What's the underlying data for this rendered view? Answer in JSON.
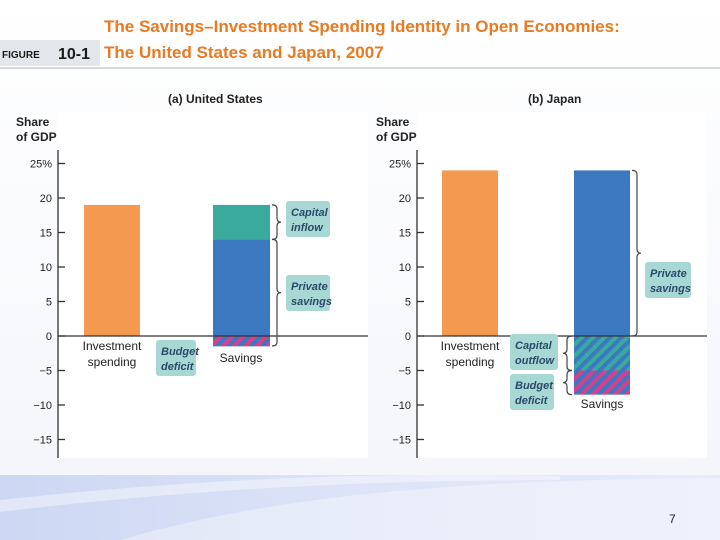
{
  "figure": {
    "label": "FIGURE",
    "number": "10-1",
    "title_line1": "The Savings–Investment Spending Identity in Open Economies:",
    "title_line2": "The United States and Japan, 2007"
  },
  "colors": {
    "investment": "#f49a50",
    "private_savings": "#3c78c0",
    "capital_inflow": "#3aaa9e",
    "hatch_pink": "#d63f8c",
    "hatch_teal": "#3aaa9e",
    "annotation_box": "#a8d8d4",
    "title": "#e87a22"
  },
  "slide": {
    "page_number": "7"
  },
  "chart_data": [
    {
      "type": "bar",
      "panel_title": "(a) United States",
      "ylabel": "Share of GDP",
      "ylabel_line1": "Share",
      "ylabel_line2": "of GDP",
      "ylim": [
        -15,
        25
      ],
      "yticks": [
        -15,
        -10,
        -5,
        0,
        5,
        10,
        15,
        20,
        25
      ],
      "ytick_labels": [
        "−15",
        "−10",
        "−5",
        "0",
        "5",
        "10",
        "15",
        "20",
        "25%"
      ],
      "categories": [
        "Investment spending",
        "Savings"
      ],
      "category_lines": [
        [
          "Investment",
          "spending"
        ],
        [
          "Savings"
        ]
      ],
      "series": [
        {
          "name": "Investment spending",
          "values": [
            19,
            0
          ]
        },
        {
          "name": "Private savings",
          "values": [
            0,
            14
          ]
        },
        {
          "name": "Capital inflow",
          "values": [
            0,
            5
          ]
        },
        {
          "name": "Budget deficit",
          "values": [
            0,
            -1.5
          ]
        }
      ],
      "annotations": [
        {
          "lines": [
            "Capital",
            "inflow"
          ]
        },
        {
          "lines": [
            "Private",
            "savings"
          ]
        },
        {
          "lines": [
            "Budget",
            "deficit"
          ]
        }
      ]
    },
    {
      "type": "bar",
      "panel_title": "(b) Japan",
      "ylabel": "Share of GDP",
      "ylabel_line1": "Share",
      "ylabel_line2": "of GDP",
      "ylim": [
        -15,
        25
      ],
      "yticks": [
        -15,
        -10,
        -5,
        0,
        5,
        10,
        15,
        20,
        25
      ],
      "ytick_labels": [
        "−15",
        "−10",
        "−5",
        "0",
        "5",
        "10",
        "15",
        "20",
        "25%"
      ],
      "categories": [
        "Investment spending",
        "Savings"
      ],
      "category_lines": [
        [
          "Investment",
          "spending"
        ],
        [
          "Savings"
        ]
      ],
      "series": [
        {
          "name": "Investment spending",
          "values": [
            24,
            0
          ]
        },
        {
          "name": "Private savings",
          "values": [
            0,
            24
          ]
        },
        {
          "name": "Capital outflow",
          "values": [
            0,
            -5
          ]
        },
        {
          "name": "Budget deficit",
          "values": [
            0,
            -3.5
          ]
        }
      ],
      "annotations": [
        {
          "lines": [
            "Private",
            "savings"
          ]
        },
        {
          "lines": [
            "Capital",
            "outflow"
          ]
        },
        {
          "lines": [
            "Budget",
            "deficit"
          ]
        }
      ]
    }
  ]
}
